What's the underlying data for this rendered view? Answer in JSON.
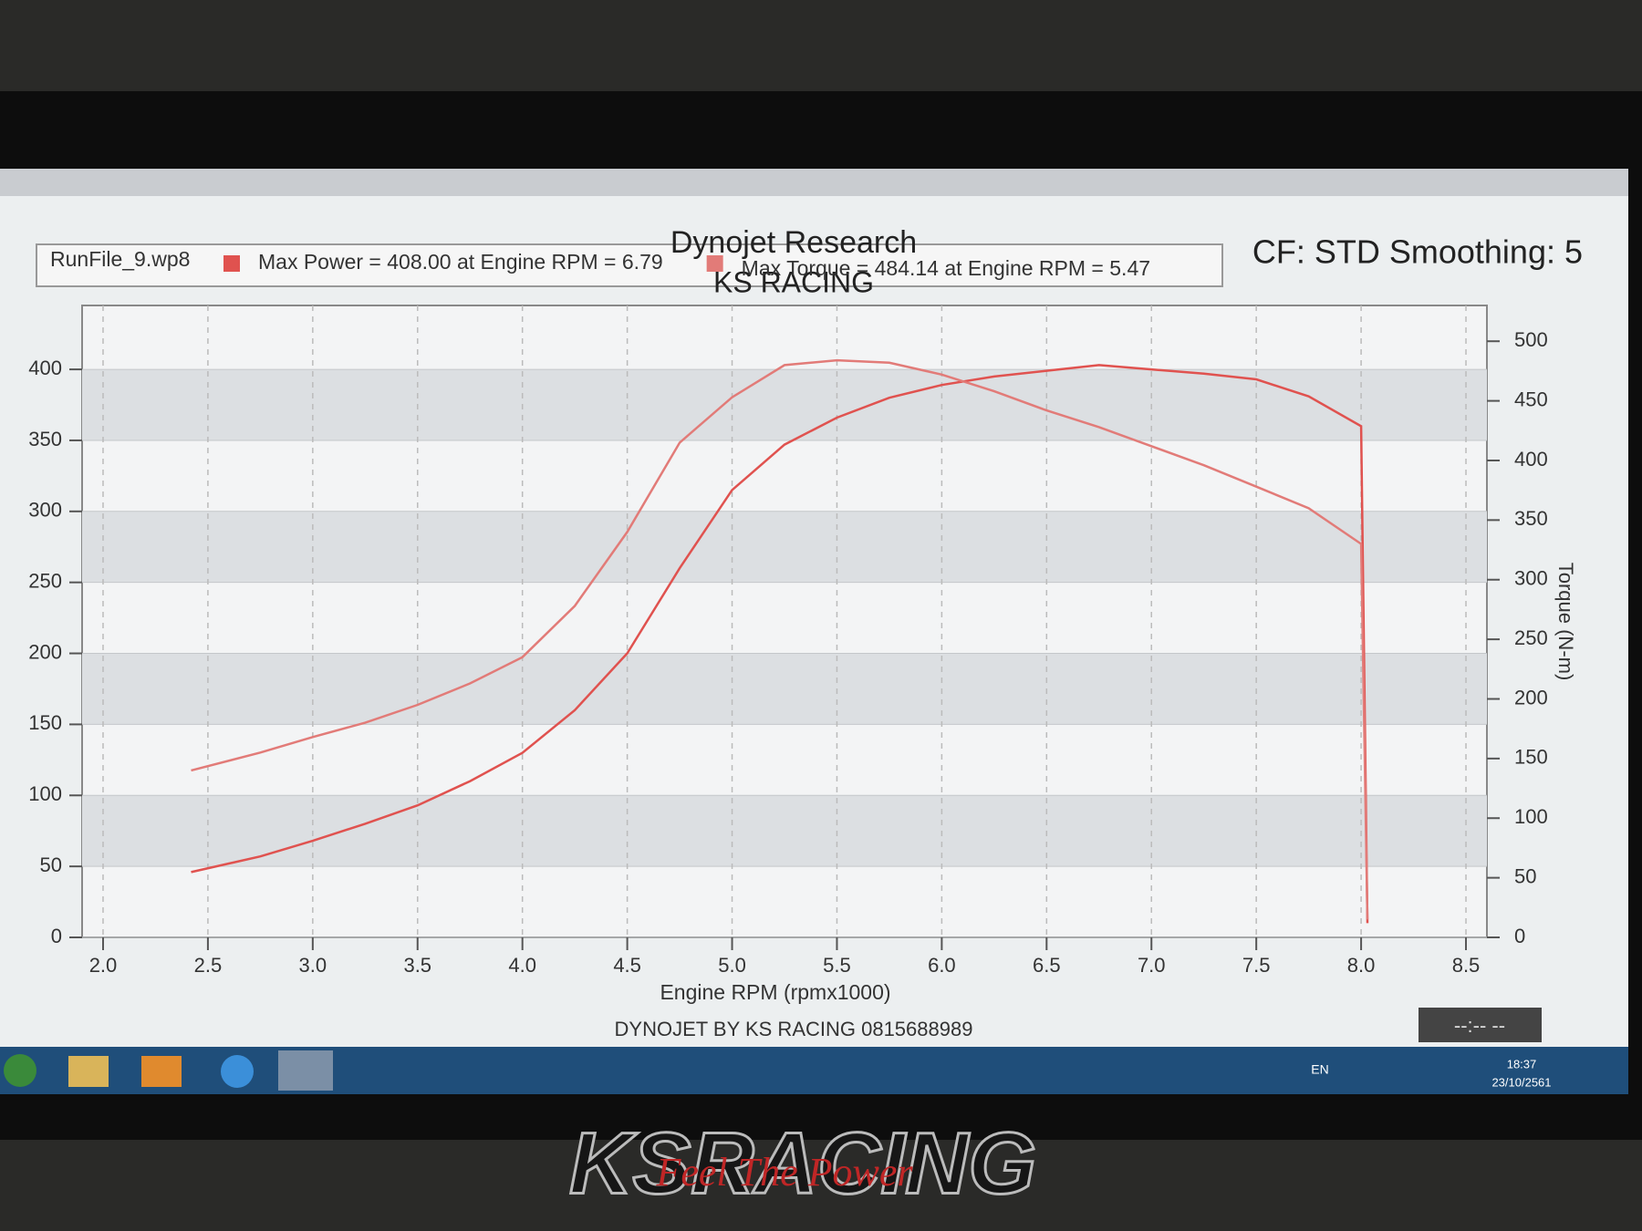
{
  "chart_data": {
    "type": "line",
    "title": "Dynojet Research",
    "subtitle": "KS RACING",
    "settings_text": "CF: STD Smoothing: 5",
    "run_file": "RunFile_9.wp8",
    "xlabel": "Engine RPM (rpmx1000)",
    "y2label": "Torque (N-m)",
    "x": [
      2.42,
      2.75,
      3.0,
      3.25,
      3.5,
      3.75,
      4.0,
      4.25,
      4.5,
      4.75,
      5.0,
      5.25,
      5.5,
      5.75,
      6.0,
      6.25,
      6.5,
      6.75,
      7.0,
      7.25,
      7.5,
      7.75,
      8.0,
      8.03
    ],
    "series": [
      {
        "name": "Max Power = 408.00 at Engine RPM = 6.79",
        "color": "#e0524f",
        "axis": "y",
        "values": [
          46,
          57,
          68,
          80,
          93,
          110,
          130,
          160,
          200,
          260,
          315,
          347,
          366,
          380,
          389,
          395,
          399,
          403,
          400,
          397,
          393,
          381,
          360,
          10
        ]
      },
      {
        "name": "Max Torque = 484.14 at Engine RPM = 5.47",
        "color": "#e27b78",
        "axis": "y2",
        "values": [
          140,
          155,
          168,
          180,
          195,
          213,
          235,
          278,
          340,
          415,
          453,
          480,
          484,
          482,
          472,
          458,
          442,
          428,
          412,
          396,
          378,
          360,
          330,
          15
        ]
      }
    ],
    "xlim": [
      1.9,
      8.6
    ],
    "xticks": [
      {
        "value": 2,
        "label": "2.0"
      },
      2.5,
      {
        "value": 3,
        "label": "3.0"
      },
      3.5,
      {
        "value": 4,
        "label": "4.0"
      },
      4.5,
      {
        "value": 5,
        "label": "5.0"
      },
      5.5,
      {
        "value": 6,
        "label": "6.0"
      },
      6.5,
      {
        "value": 7,
        "label": "7.0"
      },
      7.5,
      {
        "value": 8,
        "label": "8.0"
      },
      8.5
    ],
    "ylim": [
      0,
      445
    ],
    "yticks": [
      0,
      50,
      100,
      150,
      200,
      250,
      300,
      350,
      400
    ],
    "y2lim": [
      0,
      530
    ],
    "y2ticks": [
      0,
      50,
      100,
      150,
      200,
      250,
      300,
      350,
      400,
      450,
      500
    ],
    "grid": true
  },
  "footer": "DYNOJET BY KS RACING 0815688989",
  "timer": "--:-- --",
  "taskbar": {
    "language": "EN",
    "time": "18:37",
    "date": "23/10/2561"
  },
  "logo": {
    "brand": "KSRACING",
    "slogan": "Feel The Power"
  }
}
